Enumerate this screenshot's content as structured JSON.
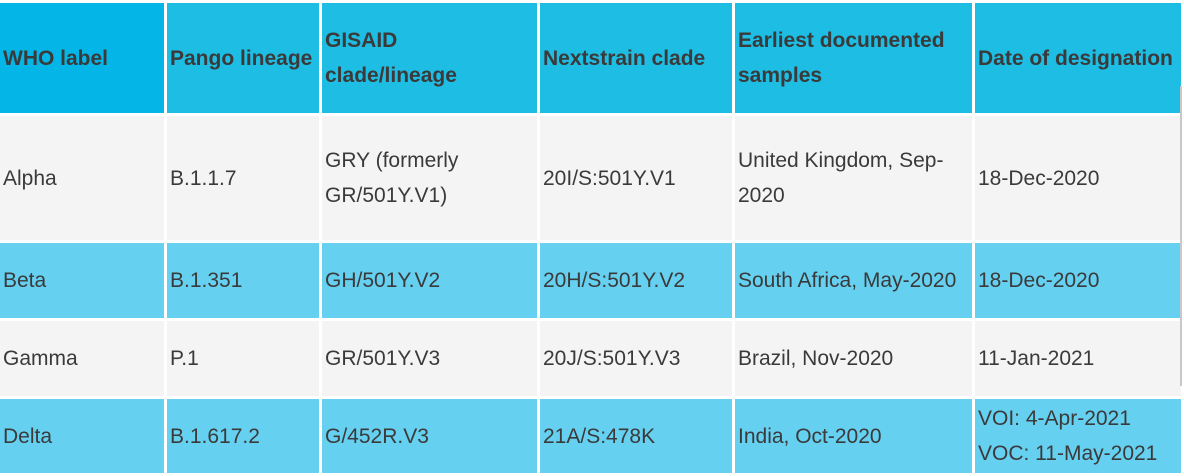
{
  "headers": [
    "WHO label",
    "Pango lineage",
    "GISAID clade/lineage",
    "Nextstrain clade",
    "Earliest documented samples",
    "Date of designation"
  ],
  "rows": [
    {
      "who": "Alpha",
      "pango": "B.1.1.7",
      "gisaid": "GRY (formerly GR/501Y.V1)",
      "nextstrain": "20I/S:501Y.V1",
      "earliest": "United Kingdom, Sep-2020",
      "date": "18-Dec-2020"
    },
    {
      "who": "Beta",
      "pango": "B.1.351",
      "gisaid": "GH/501Y.V2",
      "nextstrain": "20H/S:501Y.V2",
      "earliest": "South Africa, May-2020",
      "date": "18-Dec-2020"
    },
    {
      "who": "Gamma",
      "pango": "P.1",
      "gisaid": "GR/501Y.V3",
      "nextstrain": "20J/S:501Y.V3",
      "earliest": "Brazil, Nov-2020",
      "date": "11-Jan-2021"
    },
    {
      "who": "Delta",
      "pango": "B.1.617.2",
      "gisaid": "G/452R.V3",
      "nextstrain": "21A/S:478K",
      "earliest": "India, Oct-2020",
      "date": "VOI: 4-Apr-2021 VOC: 11-May-2021"
    }
  ],
  "colors": {
    "header_first": "#03b6e7",
    "header": "#1ebde4",
    "row_light": "#f4f4f5",
    "row_blue": "#66d0f0",
    "text": "#3a3a3a"
  }
}
